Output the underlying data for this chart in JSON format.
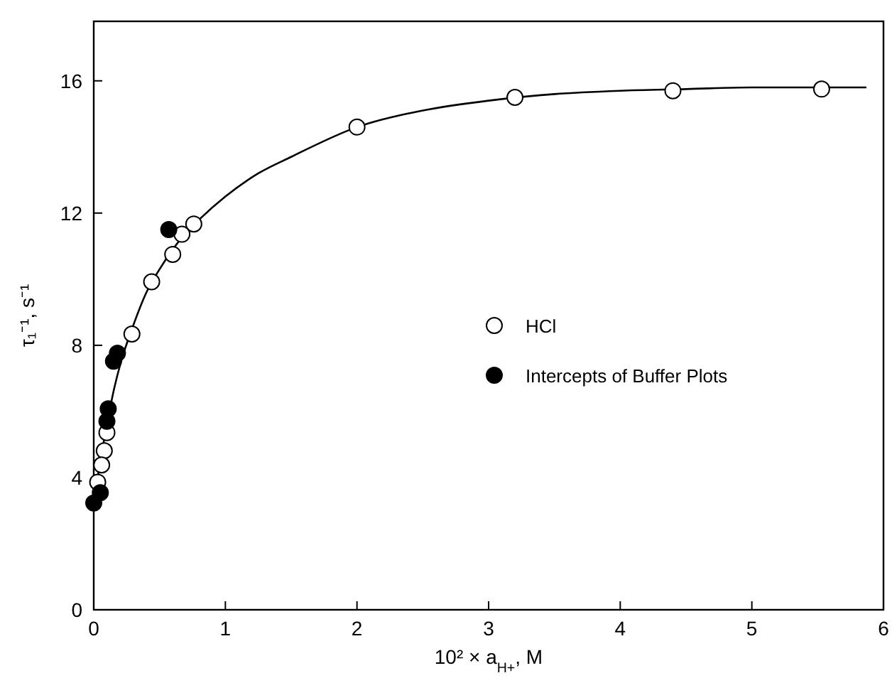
{
  "chart_data": {
    "type": "scatter",
    "xlabel": "10² × a$_{H+}$, M",
    "ylabel": "τ₁⁻¹, s⁻¹",
    "xlim": [
      0,
      6
    ],
    "ylim": [
      0,
      17.8
    ],
    "xticks": [
      0,
      1,
      2,
      3,
      4,
      5,
      6
    ],
    "yticks": [
      0,
      4,
      8,
      12,
      16
    ],
    "grid": false,
    "legend": "right",
    "marker": "circle",
    "series": [
      {
        "type": "line",
        "color": "#000000",
        "marker": "none",
        "x": [
          0,
          0.05,
          0.1,
          0.15,
          0.2,
          0.3,
          0.4,
          0.5,
          0.6,
          0.7,
          0.8,
          1,
          1.25,
          1.5,
          2,
          2.5,
          3,
          3.5,
          4,
          4.5,
          5,
          5.5,
          5.87
        ],
        "values": [
          3.2,
          4.5,
          5.6,
          6.6,
          7.4,
          8.6,
          9.6,
          10.3,
          10.9,
          11.4,
          11.8,
          12.5,
          13.2,
          13.7,
          14.6,
          15.1,
          15.4,
          15.6,
          15.7,
          15.75,
          15.8,
          15.8,
          15.8
        ]
      },
      {
        "name": "HCl",
        "color": "#ffffff",
        "x": [
          5.53,
          4.4,
          3.2,
          2.0,
          0.76,
          0.67,
          0.6,
          0.44,
          0.29,
          0.1,
          0.08,
          0.06,
          0.03
        ],
        "values": [
          15.75,
          15.7,
          15.5,
          14.6,
          11.67,
          11.36,
          10.75,
          9.92,
          8.34,
          5.36,
          4.81,
          4.38,
          3.86
        ]
      },
      {
        "name": "Intercepts of Buffer Plots",
        "color": "#000000",
        "x": [
          0.57,
          0.18,
          0.15,
          0.11,
          0.1,
          0.05,
          0.0
        ],
        "values": [
          11.5,
          7.76,
          7.52,
          6.08,
          5.7,
          3.54,
          3.23
        ]
      }
    ]
  }
}
